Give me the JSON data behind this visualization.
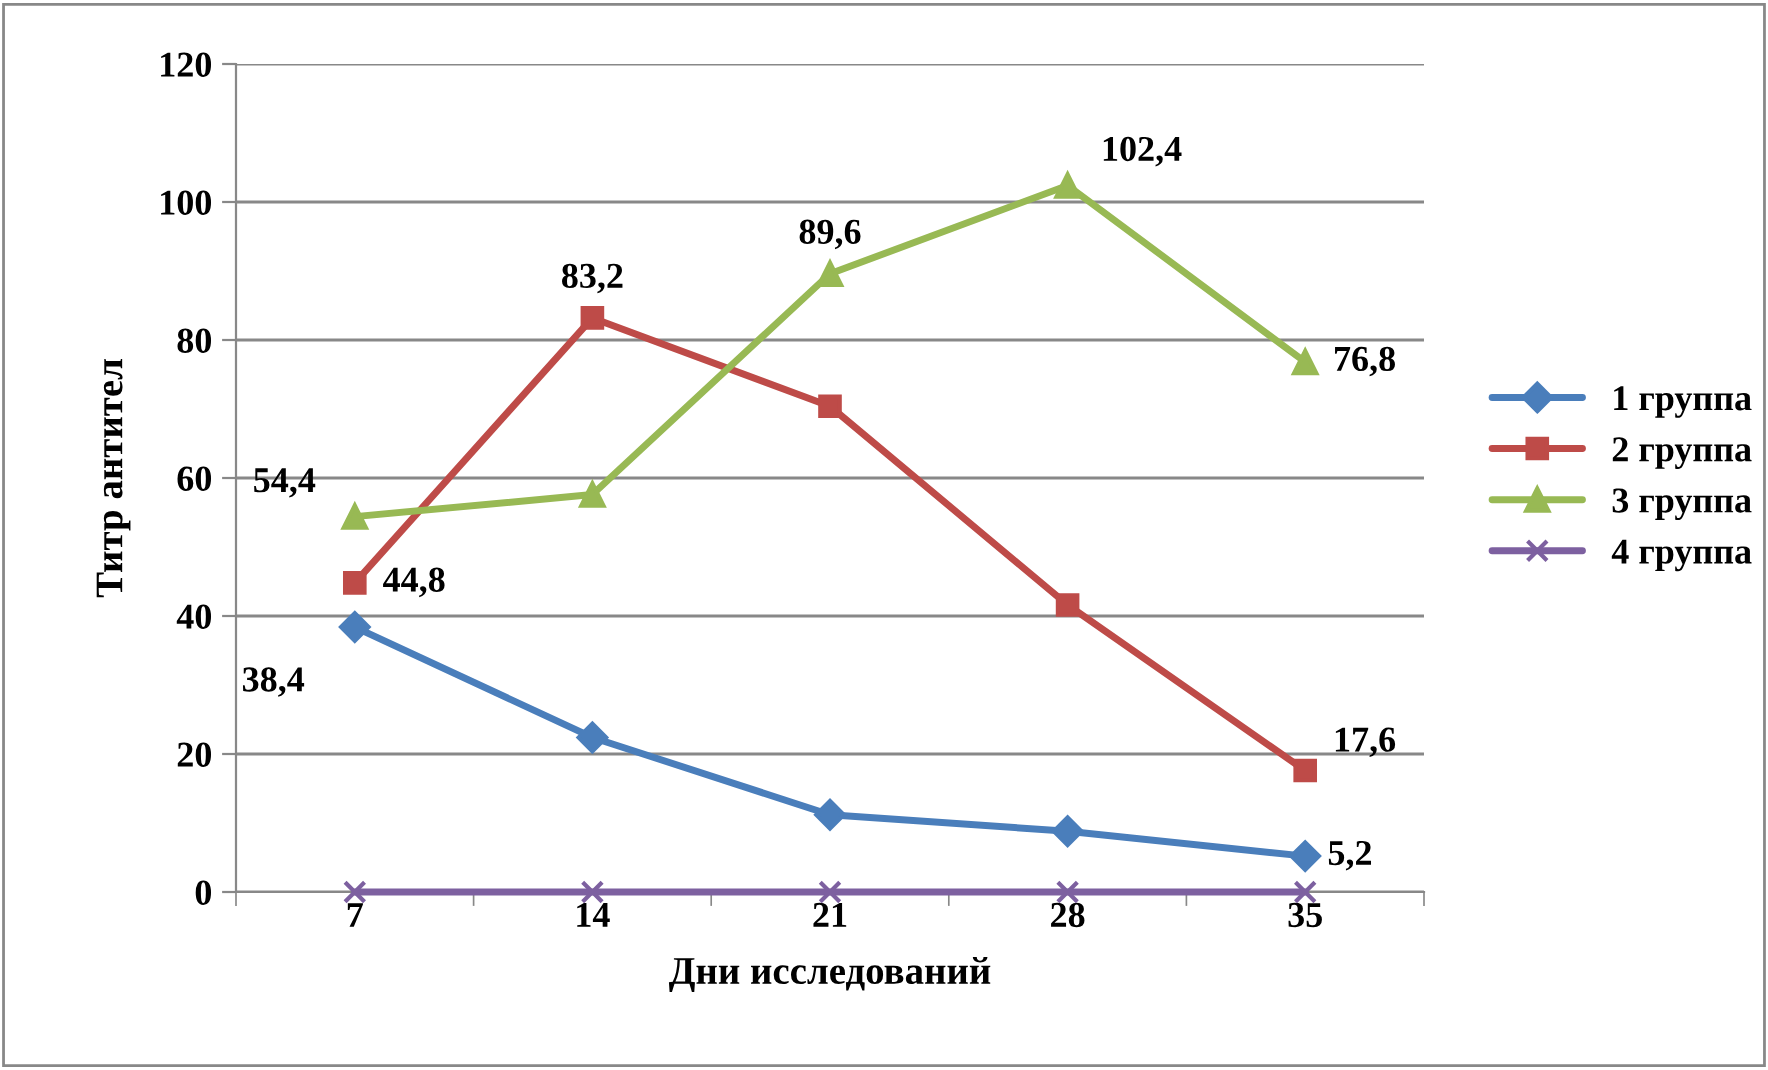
{
  "chart_data": {
    "type": "line",
    "xlabel": "Дни исследований",
    "ylabel": "Титр антител",
    "categories": [
      "7",
      "14",
      "21",
      "28",
      "35"
    ],
    "ylim": [
      0,
      120
    ],
    "yticks": [
      0,
      20,
      40,
      60,
      80,
      100,
      120
    ],
    "grid": "y",
    "legend": "right",
    "series": [
      {
        "name": "1 группа",
        "color": "#4a7ebb",
        "marker": "diamond",
        "values": [
          38.4,
          22.4,
          11.2,
          8.8,
          5.2
        ],
        "value_labels": [
          "38,4",
          null,
          null,
          null,
          "5,2"
        ]
      },
      {
        "name": "2 группа",
        "color": "#be4b48",
        "marker": "square",
        "values": [
          44.8,
          83.2,
          70.4,
          41.6,
          17.6
        ],
        "value_labels": [
          "44,8",
          "83,2",
          null,
          null,
          "17,6"
        ]
      },
      {
        "name": "3 группа",
        "color": "#98b954",
        "marker": "triangle",
        "values": [
          54.4,
          57.6,
          89.6,
          102.4,
          76.8
        ],
        "value_labels": [
          "54,4",
          null,
          "89,6",
          "102,4",
          "76,8"
        ]
      },
      {
        "name": "4 группа",
        "color": "#7d60a0",
        "marker": "cross",
        "values": [
          0,
          0,
          0,
          0,
          0
        ]
      }
    ]
  }
}
